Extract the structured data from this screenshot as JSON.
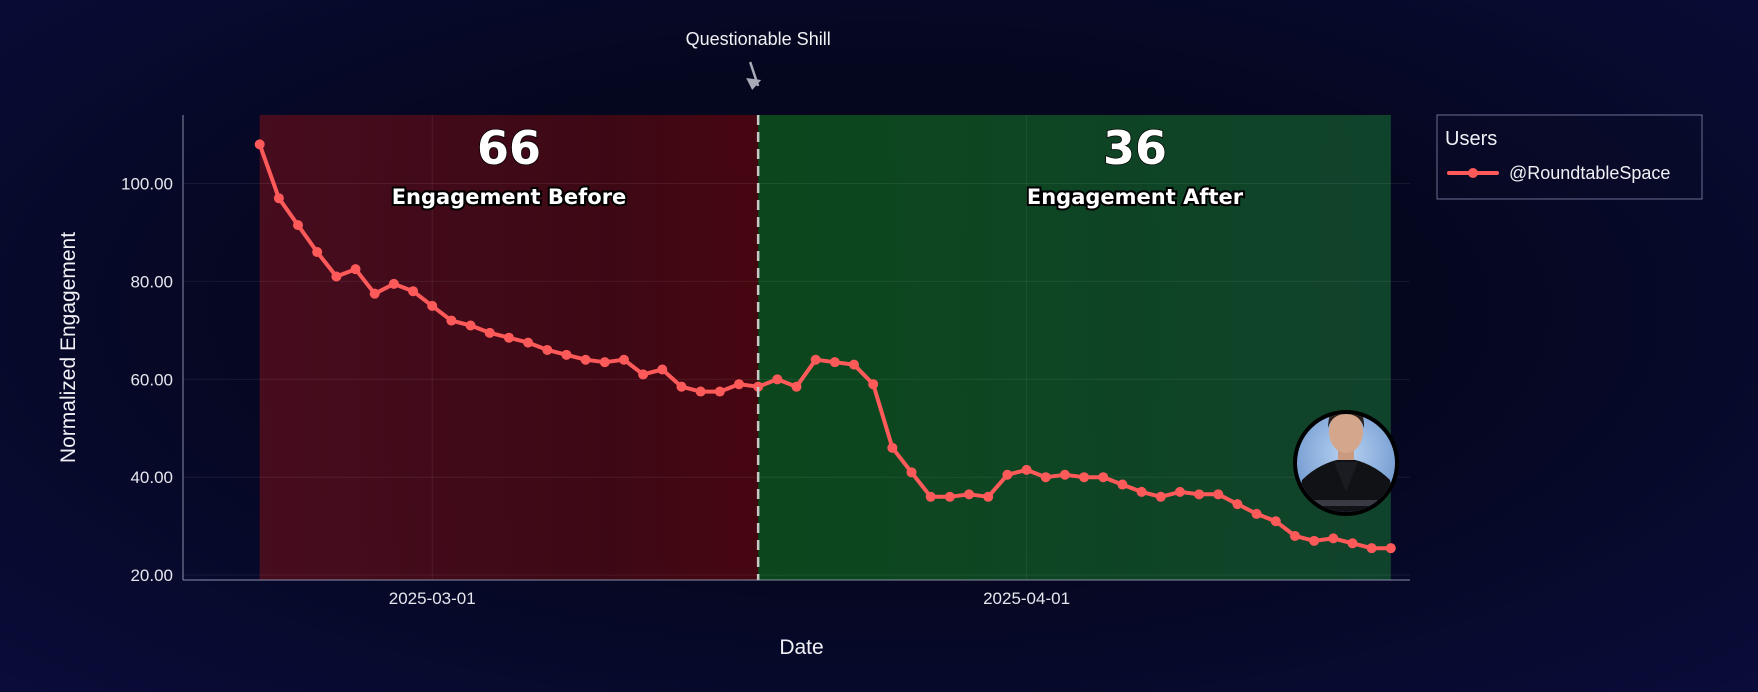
{
  "chart_data": {
    "type": "line",
    "xlabel": "Date",
    "ylabel": "Normalized Engagement",
    "x_ticks": [
      "2025-03-01",
      "2025-04-01"
    ],
    "y_ticks": [
      "20.00",
      "40.00",
      "60.00",
      "80.00",
      "100.00"
    ],
    "ylim": [
      19,
      114
    ],
    "xlim": [
      "2025-02-16",
      "2025-04-21"
    ],
    "grid": true,
    "legend_position": "top-right",
    "legend_title": "Users",
    "series": [
      {
        "name": "@RoundtableSpace",
        "color": "#ff5a5a",
        "x": [
          "2025-02-20",
          "2025-02-21",
          "2025-02-22",
          "2025-02-23",
          "2025-02-24",
          "2025-02-25",
          "2025-02-26",
          "2025-02-27",
          "2025-02-28",
          "2025-03-01",
          "2025-03-02",
          "2025-03-03",
          "2025-03-04",
          "2025-03-05",
          "2025-03-06",
          "2025-03-07",
          "2025-03-08",
          "2025-03-09",
          "2025-03-10",
          "2025-03-11",
          "2025-03-12",
          "2025-03-13",
          "2025-03-14",
          "2025-03-15",
          "2025-03-16",
          "2025-03-17",
          "2025-03-18",
          "2025-03-19",
          "2025-03-20",
          "2025-03-21",
          "2025-03-22",
          "2025-03-23",
          "2025-03-24",
          "2025-03-25",
          "2025-03-26",
          "2025-03-27",
          "2025-03-28",
          "2025-03-29",
          "2025-03-30",
          "2025-03-31",
          "2025-04-01",
          "2025-04-02",
          "2025-04-03",
          "2025-04-04",
          "2025-04-05",
          "2025-04-06",
          "2025-04-07",
          "2025-04-08",
          "2025-04-09",
          "2025-04-10",
          "2025-04-11",
          "2025-04-12",
          "2025-04-13",
          "2025-04-14",
          "2025-04-15",
          "2025-04-16",
          "2025-04-17",
          "2025-04-18",
          "2025-04-19",
          "2025-04-20"
        ],
        "y": [
          108,
          97,
          91.5,
          86,
          81,
          82.5,
          77.5,
          79.5,
          78,
          75,
          72,
          71,
          69.5,
          68.5,
          67.5,
          66,
          65,
          64,
          63.5,
          64,
          61,
          62,
          58.5,
          57.5,
          57.5,
          59,
          58.5,
          60,
          58.5,
          64,
          63.5,
          63,
          59,
          46,
          41,
          36,
          36,
          36.5,
          36,
          40.5,
          41.5,
          40,
          40.5,
          40,
          40,
          38.5,
          37,
          36,
          37,
          36.5,
          36.5,
          34.5,
          32.5,
          31,
          28,
          27,
          27.5,
          26.5,
          25.5,
          25.5
        ]
      }
    ],
    "regions": [
      {
        "label": "Engagement Before",
        "value": "66",
        "start": "2025-02-20",
        "end": "2025-03-18",
        "color": "#5a0a16"
      },
      {
        "label": "Engagement After",
        "value": "36",
        "start": "2025-03-18",
        "end": "2025-04-20",
        "color": "#0f4a26"
      }
    ],
    "annotation": {
      "text": "Questionable Shill",
      "date": "2025-03-18"
    }
  }
}
